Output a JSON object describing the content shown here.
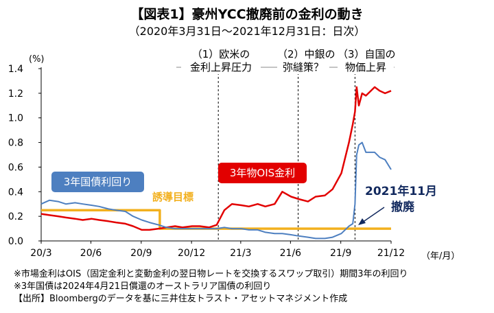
{
  "title": "【図表1】豪州YCC撤廃前の金利の動き",
  "subtitle": "（2020年3月31日～2021年12月31日：日次）",
  "chart_data": {
    "type": "line",
    "y_unit": "(%)",
    "x_unit": "（年/月）",
    "ylim": [
      0,
      1.4
    ],
    "xlim": [
      "2020-03-31",
      "2021-12-31"
    ],
    "y_ticks": [
      0.0,
      0.2,
      0.4,
      0.6,
      0.8,
      1.0,
      1.2,
      1.4
    ],
    "x_ticks": [
      {
        "label": "20/3",
        "date": "2020-03-31"
      },
      {
        "label": "20/6",
        "date": "2020-06-30"
      },
      {
        "label": "20/9",
        "date": "2020-09-30"
      },
      {
        "label": "20/12",
        "date": "2020-12-31"
      },
      {
        "label": "21/3",
        "date": "2021-03-31"
      },
      {
        "label": "21/6",
        "date": "2021-06-30"
      },
      {
        "label": "21/9",
        "date": "2021-09-30"
      },
      {
        "label": "21/12",
        "date": "2021-12-31"
      }
    ],
    "grid": false,
    "series": [
      {
        "name": "3年国債利回り",
        "color": "#4d7fc0",
        "points": [
          [
            "2020-03-31",
            0.3
          ],
          [
            "2020-04-15",
            0.33
          ],
          [
            "2020-05-01",
            0.32
          ],
          [
            "2020-05-15",
            0.3
          ],
          [
            "2020-06-01",
            0.31
          ],
          [
            "2020-06-15",
            0.3
          ],
          [
            "2020-07-01",
            0.29
          ],
          [
            "2020-07-15",
            0.28
          ],
          [
            "2020-08-01",
            0.26
          ],
          [
            "2020-08-15",
            0.25
          ],
          [
            "2020-09-01",
            0.24
          ],
          [
            "2020-09-15",
            0.2
          ],
          [
            "2020-10-01",
            0.17
          ],
          [
            "2020-10-15",
            0.15
          ],
          [
            "2020-11-01",
            0.13
          ],
          [
            "2020-11-15",
            0.11
          ],
          [
            "2020-12-01",
            0.1
          ],
          [
            "2020-12-15",
            0.1
          ],
          [
            "2021-01-01",
            0.1
          ],
          [
            "2021-01-15",
            0.1
          ],
          [
            "2021-02-01",
            0.1
          ],
          [
            "2021-02-15",
            0.1
          ],
          [
            "2021-03-01",
            0.11
          ],
          [
            "2021-03-15",
            0.1
          ],
          [
            "2021-04-01",
            0.1
          ],
          [
            "2021-04-15",
            0.09
          ],
          [
            "2021-05-01",
            0.09
          ],
          [
            "2021-05-15",
            0.07
          ],
          [
            "2021-06-01",
            0.06
          ],
          [
            "2021-06-15",
            0.06
          ],
          [
            "2021-07-01",
            0.05
          ],
          [
            "2021-07-15",
            0.04
          ],
          [
            "2021-08-01",
            0.03
          ],
          [
            "2021-08-15",
            0.02
          ],
          [
            "2021-09-01",
            0.02
          ],
          [
            "2021-09-15",
            0.03
          ],
          [
            "2021-10-01",
            0.06
          ],
          [
            "2021-10-15",
            0.12
          ],
          [
            "2021-10-22",
            0.14
          ],
          [
            "2021-10-26",
            0.3
          ],
          [
            "2021-10-29",
            0.7
          ],
          [
            "2021-11-02",
            0.78
          ],
          [
            "2021-11-08",
            0.8
          ],
          [
            "2021-11-15",
            0.72
          ],
          [
            "2021-12-01",
            0.72
          ],
          [
            "2021-12-10",
            0.68
          ],
          [
            "2021-12-20",
            0.66
          ],
          [
            "2021-12-31",
            0.58
          ]
        ]
      },
      {
        "name": "3年物OIS金利",
        "color": "#e20000",
        "points": [
          [
            "2020-03-31",
            0.22
          ],
          [
            "2020-04-15",
            0.21
          ],
          [
            "2020-05-01",
            0.2
          ],
          [
            "2020-05-15",
            0.19
          ],
          [
            "2020-06-01",
            0.18
          ],
          [
            "2020-06-15",
            0.17
          ],
          [
            "2020-07-01",
            0.18
          ],
          [
            "2020-07-15",
            0.17
          ],
          [
            "2020-08-01",
            0.16
          ],
          [
            "2020-08-15",
            0.15
          ],
          [
            "2020-09-01",
            0.14
          ],
          [
            "2020-09-15",
            0.12
          ],
          [
            "2020-10-01",
            0.09
          ],
          [
            "2020-10-15",
            0.09
          ],
          [
            "2020-11-01",
            0.1
          ],
          [
            "2020-11-15",
            0.11
          ],
          [
            "2020-12-01",
            0.12
          ],
          [
            "2020-12-15",
            0.11
          ],
          [
            "2021-01-01",
            0.12
          ],
          [
            "2021-01-15",
            0.12
          ],
          [
            "2021-02-01",
            0.11
          ],
          [
            "2021-02-15",
            0.13
          ],
          [
            "2021-03-01",
            0.25
          ],
          [
            "2021-03-15",
            0.3
          ],
          [
            "2021-04-01",
            0.29
          ],
          [
            "2021-04-15",
            0.28
          ],
          [
            "2021-05-01",
            0.3
          ],
          [
            "2021-05-15",
            0.28
          ],
          [
            "2021-06-01",
            0.3
          ],
          [
            "2021-06-15",
            0.4
          ],
          [
            "2021-07-01",
            0.36
          ],
          [
            "2021-07-15",
            0.34
          ],
          [
            "2021-08-01",
            0.32
          ],
          [
            "2021-08-15",
            0.36
          ],
          [
            "2021-09-01",
            0.37
          ],
          [
            "2021-09-15",
            0.42
          ],
          [
            "2021-10-01",
            0.55
          ],
          [
            "2021-10-15",
            0.8
          ],
          [
            "2021-10-22",
            0.95
          ],
          [
            "2021-10-26",
            1.05
          ],
          [
            "2021-10-29",
            1.25
          ],
          [
            "2021-11-02",
            1.1
          ],
          [
            "2021-11-08",
            1.2
          ],
          [
            "2021-11-15",
            1.18
          ],
          [
            "2021-12-01",
            1.25
          ],
          [
            "2021-12-10",
            1.22
          ],
          [
            "2021-12-20",
            1.2
          ],
          [
            "2021-12-31",
            1.22
          ]
        ]
      },
      {
        "name": "誘導目標",
        "color": "#f2b01e",
        "points": [
          [
            "2020-03-31",
            0.25
          ],
          [
            "2020-11-03",
            0.25
          ],
          [
            "2020-11-03",
            0.1
          ],
          [
            "2021-12-31",
            0.1
          ]
        ]
      }
    ],
    "vlines": [
      {
        "date": "2021-02-18"
      },
      {
        "date": "2021-07-14"
      },
      {
        "date": "2021-10-26"
      }
    ]
  },
  "labels": {
    "box_gov": "3年国債利回り",
    "box_ois": "3年物OIS金利",
    "policy": "誘導目標",
    "nov": "2021年11月",
    "abolished": "撤廃"
  },
  "annotations": {
    "a1_line1": "（1）欧米の",
    "a1_line2": "金利上昇圧力",
    "a2_line1": "（2）中銀の",
    "a2_line2": "弥縫策？",
    "a3_line1": "（3）自国の",
    "a3_line2": "物価上昇"
  },
  "notes": [
    "※市場金利はOIS（固定金利と変動金利の翌日物レートを交換するスワップ取引）期間3年の利回り",
    "※3年国債は2024年4月21日償還のオーストラリア国債の利回り",
    "【出所】Bloombergのデータを基に三井住友トラスト・アセットマネジメント作成"
  ]
}
